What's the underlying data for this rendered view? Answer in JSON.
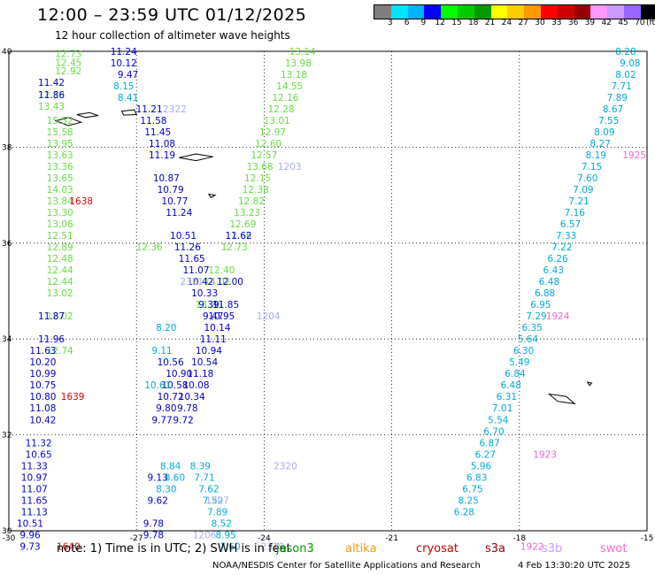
{
  "header": {
    "title": "12:00 – 23:59 UTC 01/12/2025",
    "subtitle": "12 hour collection of altimeter wave heights"
  },
  "colorbar": {
    "labels": [
      "3",
      "6",
      "9",
      "12",
      "15",
      "18",
      "21",
      "24",
      "27",
      "30",
      "33",
      "36",
      "39",
      "42",
      "45",
      "70"
    ],
    "unit": "(ft)",
    "colors": [
      "#7f7f7f",
      "#00e5ff",
      "#00b2ff",
      "#0000ff",
      "#00ff00",
      "#00cc00",
      "#009900",
      "#ffff00",
      "#ffcc00",
      "#ff9900",
      "#ff0000",
      "#cc0000",
      "#990000",
      "#ff99ff",
      "#cc99ff",
      "#9966ff",
      "#000000"
    ]
  },
  "footer": {
    "note": "note:  1) Time is in UTC;  2) SWH is in feet",
    "satellites": [
      {
        "name": "jason3",
        "color": "#009900"
      },
      {
        "name": "altika",
        "color": "#ff9900"
      },
      {
        "name": "cryosat",
        "color": "#cc0000"
      },
      {
        "name": "s3a",
        "color": "#990000"
      },
      {
        "name": "s3b",
        "color": "#cc99ff"
      },
      {
        "name": "swot",
        "color": "#ff66cc"
      }
    ],
    "credit": "NOAA/NESDIS Center for Satellite Applications and Research",
    "stamp": "4 Feb 13:30:20 UTC 2025"
  },
  "chart_data": {
    "type": "scatter",
    "title": "12:00 – 23:59 UTC 01/12/2025",
    "xlim": [
      -30,
      -15
    ],
    "ylim": [
      30,
      40
    ],
    "xticks": [
      "-30",
      "-27",
      "-24",
      "-21",
      "-18",
      "-15"
    ],
    "yticks": [
      "40",
      "38",
      "36",
      "34",
      "32",
      "30"
    ],
    "grid": true,
    "tracks": [
      {
        "color": "#66dd44",
        "points": [
          [
            -28.6,
            39.95,
            "12.73"
          ],
          [
            -28.6,
            39.77,
            "12.45"
          ],
          [
            -28.6,
            39.59,
            "12.92"
          ],
          [
            -29.0,
            39.1,
            "12.18"
          ],
          [
            -29.0,
            38.86,
            "13.43"
          ],
          [
            -28.8,
            38.56,
            "15.52"
          ],
          [
            -28.8,
            38.32,
            "15.58"
          ],
          [
            -28.8,
            38.08,
            "13.95"
          ],
          [
            -28.8,
            37.84,
            "13.63"
          ],
          [
            -28.8,
            37.6,
            "13.36"
          ],
          [
            -28.8,
            37.36,
            "13.65"
          ],
          [
            -28.8,
            37.12,
            "14.03"
          ],
          [
            -28.8,
            36.88,
            "13.84"
          ],
          [
            -28.8,
            36.64,
            "13.30"
          ],
          [
            -28.8,
            36.4,
            "13.06"
          ],
          [
            -28.8,
            36.16,
            "12.51"
          ],
          [
            -28.8,
            35.92,
            "12.89"
          ],
          [
            -28.8,
            35.68,
            "12.48"
          ],
          [
            -28.8,
            35.44,
            "12.44"
          ],
          [
            -28.8,
            35.2,
            "12.44"
          ],
          [
            -28.8,
            34.96,
            "13.02"
          ],
          [
            -28.8,
            34.48,
            "12.02"
          ],
          [
            -28.8,
            33.76,
            "12.74"
          ],
          [
            -23.1,
            40.0,
            "13.14"
          ],
          [
            -23.2,
            39.76,
            "13.98"
          ],
          [
            -23.3,
            39.52,
            "13.18"
          ],
          [
            -23.4,
            39.28,
            "14.55"
          ],
          [
            -23.5,
            39.04,
            "12.16"
          ],
          [
            -23.6,
            38.8,
            "12.28"
          ],
          [
            -23.7,
            38.56,
            "13.01"
          ],
          [
            -23.8,
            38.32,
            "12.97"
          ],
          [
            -23.9,
            38.08,
            "12.60"
          ],
          [
            -24.0,
            37.84,
            "12.57"
          ],
          [
            -24.1,
            37.6,
            "13.68"
          ],
          [
            -24.15,
            37.36,
            "12.15"
          ],
          [
            -24.2,
            37.12,
            "12.38"
          ],
          [
            -24.3,
            36.88,
            "12.82"
          ],
          [
            -24.4,
            36.64,
            "13.23"
          ],
          [
            -24.5,
            36.4,
            "12.69"
          ],
          [
            -24.6,
            36.16,
            "12.66"
          ],
          [
            -24.7,
            35.92,
            "12.73"
          ],
          [
            -26.7,
            35.92,
            "12.36"
          ],
          [
            -25.0,
            35.44,
            "12.40"
          ],
          [
            -25.1,
            35.2,
            "14.02"
          ],
          [
            -25.3,
            34.72,
            "13.76"
          ]
        ]
      },
      {
        "color": "#0000cc",
        "points": [
          [
            -27.3,
            40.0,
            "11.24"
          ],
          [
            -27.3,
            39.76,
            "10.12"
          ],
          [
            -27.2,
            39.52,
            "9.47"
          ],
          [
            -29.0,
            39.35,
            "11.42"
          ],
          [
            -29.0,
            39.1,
            "11.86"
          ],
          [
            -26.7,
            38.8,
            "11.21"
          ],
          [
            -26.6,
            38.56,
            "11.58"
          ],
          [
            -26.5,
            38.32,
            "11.45"
          ],
          [
            -26.4,
            38.08,
            "11.08"
          ],
          [
            -26.4,
            37.84,
            "11.19"
          ],
          [
            -26.3,
            37.36,
            "10.87"
          ],
          [
            -26.2,
            37.12,
            "10.79"
          ],
          [
            -26.1,
            36.88,
            "10.77"
          ],
          [
            -26.0,
            36.64,
            "11.24"
          ],
          [
            -25.9,
            36.16,
            "10.51"
          ],
          [
            -25.8,
            35.92,
            "11.26"
          ],
          [
            -25.7,
            35.68,
            "11.65"
          ],
          [
            -25.6,
            35.44,
            "11.07"
          ],
          [
            -25.5,
            35.2,
            "10.42"
          ],
          [
            -25.4,
            34.96,
            "10.33"
          ],
          [
            -25.3,
            34.72,
            "9.39"
          ],
          [
            -25.2,
            34.48,
            "9.47"
          ],
          [
            -24.6,
            36.16,
            "11.62"
          ],
          [
            -24.8,
            35.2,
            "12.00"
          ],
          [
            -24.9,
            34.72,
            "11.85"
          ],
          [
            -25.0,
            34.48,
            "10.95"
          ],
          [
            -25.1,
            34.24,
            "10.14"
          ],
          [
            -25.2,
            34.0,
            "11.11"
          ],
          [
            -25.3,
            33.76,
            "10.94"
          ],
          [
            -25.4,
            33.52,
            "10.54"
          ],
          [
            -25.5,
            33.28,
            "11.18"
          ],
          [
            -25.6,
            33.04,
            "10.08"
          ],
          [
            -25.7,
            32.8,
            "10.34"
          ],
          [
            -25.8,
            32.56,
            "9.78"
          ],
          [
            -25.9,
            32.32,
            "9.72"
          ],
          [
            -29.0,
            34.48,
            "11.87"
          ],
          [
            -29.0,
            34.0,
            "11.96"
          ],
          [
            -29.2,
            33.76,
            "11.63"
          ],
          [
            -29.2,
            33.52,
            "10.20"
          ],
          [
            -29.2,
            33.28,
            "10.99"
          ],
          [
            -29.2,
            33.04,
            "10.75"
          ],
          [
            -29.2,
            32.8,
            "10.80"
          ],
          [
            -29.2,
            32.56,
            "11.08"
          ],
          [
            -29.2,
            32.32,
            "10.42"
          ],
          [
            -29.3,
            31.84,
            "11.32"
          ],
          [
            -29.3,
            31.6,
            "10.65"
          ],
          [
            -29.4,
            31.36,
            "11.33"
          ],
          [
            -29.4,
            31.12,
            "10.97"
          ],
          [
            -29.4,
            30.88,
            "11.07"
          ],
          [
            -29.4,
            30.64,
            "11.65"
          ],
          [
            -29.4,
            30.4,
            "11.13"
          ],
          [
            -29.5,
            30.16,
            "10.51"
          ],
          [
            -29.5,
            29.92,
            "9.96"
          ],
          [
            -29.5,
            29.68,
            "9.73"
          ],
          [
            -26.2,
            33.52,
            "10.56"
          ],
          [
            -26.0,
            33.28,
            "10.90"
          ],
          [
            -26.1,
            33.04,
            "10.58"
          ],
          [
            -26.2,
            32.8,
            "10.72"
          ],
          [
            -26.3,
            32.56,
            "9.80"
          ],
          [
            -26.4,
            32.32,
            "9.77"
          ],
          [
            -26.5,
            31.12,
            "9.13"
          ],
          [
            -26.5,
            30.64,
            "9.62"
          ],
          [
            -26.6,
            30.16,
            "9.78"
          ],
          [
            -26.6,
            29.92,
            "9.78"
          ]
        ]
      },
      {
        "color": "#00aadd",
        "points": [
          [
            -27.3,
            39.28,
            "8.15"
          ],
          [
            -27.2,
            39.04,
            "8.41"
          ],
          [
            -15.5,
            40.0,
            "8.28"
          ],
          [
            -15.4,
            39.76,
            "9.08"
          ],
          [
            -15.5,
            39.52,
            "8.02"
          ],
          [
            -15.6,
            39.28,
            "7.71"
          ],
          [
            -15.7,
            39.04,
            "7.89"
          ],
          [
            -15.8,
            38.8,
            "8.67"
          ],
          [
            -15.9,
            38.56,
            "7.55"
          ],
          [
            -16.0,
            38.32,
            "8.09"
          ],
          [
            -16.1,
            38.08,
            "8.27"
          ],
          [
            -16.2,
            37.84,
            "8.19"
          ],
          [
            -16.3,
            37.6,
            "7.15"
          ],
          [
            -16.4,
            37.36,
            "7.60"
          ],
          [
            -16.5,
            37.12,
            "7.09"
          ],
          [
            -16.6,
            36.88,
            "7.21"
          ],
          [
            -16.7,
            36.64,
            "7.16"
          ],
          [
            -16.8,
            36.4,
            "6.57"
          ],
          [
            -16.9,
            36.16,
            "7.33"
          ],
          [
            -17.0,
            35.92,
            "7.22"
          ],
          [
            -17.1,
            35.68,
            "6.26"
          ],
          [
            -17.2,
            35.44,
            "6.43"
          ],
          [
            -17.3,
            35.2,
            "6.48"
          ],
          [
            -17.4,
            34.96,
            "6.88"
          ],
          [
            -17.5,
            34.72,
            "6.95"
          ],
          [
            -17.6,
            34.48,
            "7.29"
          ],
          [
            -17.7,
            34.24,
            "6.35"
          ],
          [
            -17.8,
            34.0,
            "5.64"
          ],
          [
            -17.9,
            33.76,
            "6.30"
          ],
          [
            -18.0,
            33.52,
            "5.49"
          ],
          [
            -18.1,
            33.28,
            "6.84"
          ],
          [
            -18.2,
            33.04,
            "6.48"
          ],
          [
            -18.3,
            32.8,
            "6.31"
          ],
          [
            -18.4,
            32.56,
            "7.01"
          ],
          [
            -18.5,
            32.32,
            "5.54"
          ],
          [
            -18.6,
            32.08,
            "6.70"
          ],
          [
            -18.7,
            31.84,
            "6.87"
          ],
          [
            -18.8,
            31.6,
            "6.27"
          ],
          [
            -18.9,
            31.36,
            "5.96"
          ],
          [
            -19.0,
            31.12,
            "6.83"
          ],
          [
            -19.1,
            30.88,
            "6.75"
          ],
          [
            -19.2,
            30.64,
            "8.25"
          ],
          [
            -19.3,
            30.4,
            "6.28"
          ],
          [
            -26.3,
            34.24,
            "8.20"
          ],
          [
            -26.4,
            33.76,
            "9.11"
          ],
          [
            -26.5,
            33.04,
            "10.61"
          ],
          [
            -26.2,
            31.36,
            "8.84"
          ],
          [
            -26.1,
            31.12,
            "8.60"
          ],
          [
            -26.3,
            30.88,
            "8.30"
          ],
          [
            -25.5,
            31.36,
            "8.39"
          ],
          [
            -25.4,
            31.12,
            "7.71"
          ],
          [
            -25.3,
            30.88,
            "7.62"
          ],
          [
            -25.2,
            30.64,
            "7.52"
          ],
          [
            -25.1,
            30.4,
            "7.89"
          ],
          [
            -25.0,
            30.16,
            "8.52"
          ],
          [
            -24.9,
            29.92,
            "8.95"
          ],
          [
            -24.8,
            29.68,
            "7.60"
          ]
        ]
      },
      {
        "color": "#aaaaee",
        "points": [
          [
            -26.1,
            38.8,
            "2322"
          ],
          [
            -23.4,
            37.6,
            "1203"
          ],
          [
            -25.7,
            35.2,
            "2321"
          ],
          [
            -23.9,
            34.48,
            "1204"
          ],
          [
            -23.5,
            31.36,
            "2320"
          ],
          [
            -25.1,
            30.64,
            "1207"
          ],
          [
            -25.4,
            29.92,
            "1206"
          ],
          [
            -23.8,
            29.68,
            "2319"
          ]
        ]
      },
      {
        "color": "#ee66cc",
        "points": [
          [
            -15.3,
            37.84,
            "1925"
          ],
          [
            -17.1,
            34.48,
            "1924"
          ],
          [
            -17.4,
            31.6,
            "1923"
          ],
          [
            -17.7,
            29.68,
            "1922"
          ]
        ]
      },
      {
        "color": "#dd0000",
        "points": [
          [
            -28.3,
            36.88,
            "1638"
          ],
          [
            -28.5,
            32.8,
            "1639"
          ],
          [
            -28.6,
            29.68,
            "1640"
          ]
        ]
      }
    ]
  }
}
